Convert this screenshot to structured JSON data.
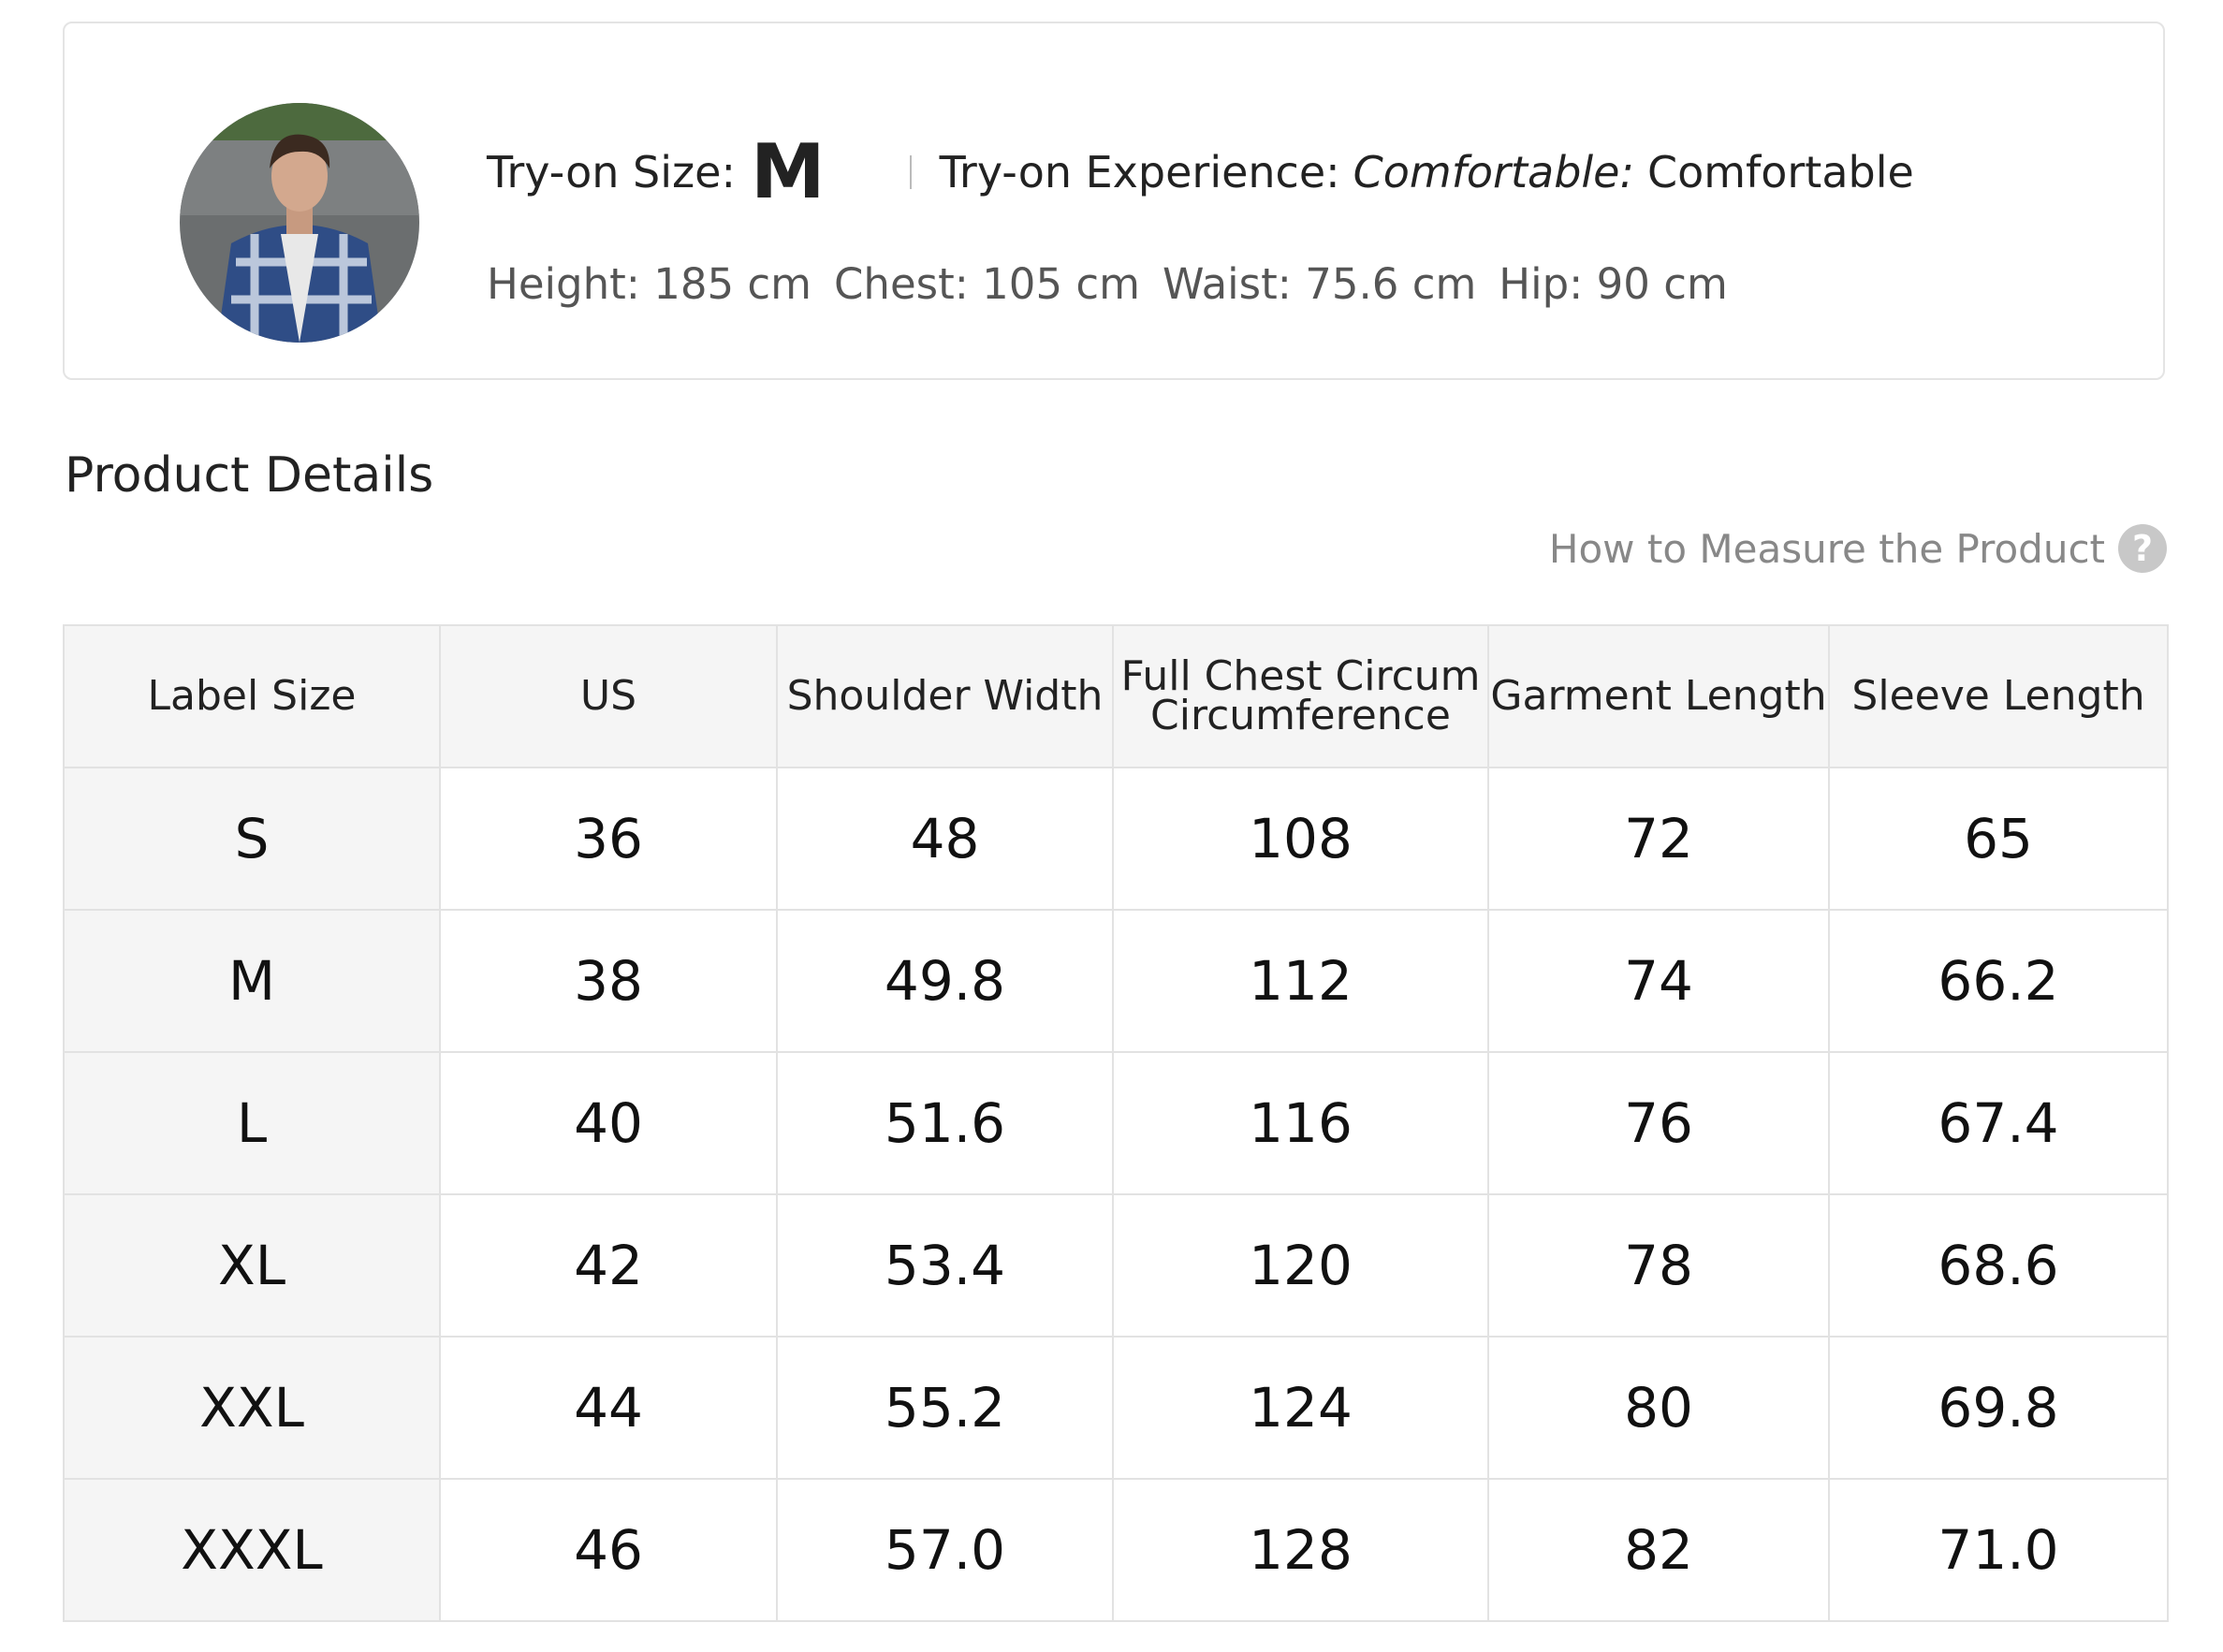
{
  "tryon": {
    "size_label": "Try-on Size:",
    "size": "M",
    "experience_label": "Try-on Experience:",
    "experience_italic": "Comfortable:",
    "experience": "Comfortable",
    "measurements": [
      "Height: 185 cm",
      "Chest: 105 cm",
      "Waist: 75.6 cm",
      "Hip: 90 cm"
    ]
  },
  "section_title": "Product Details",
  "measure_link": "How to Measure the Product",
  "help_icon": "?",
  "table": {
    "headers": [
      [
        "Label Size"
      ],
      [
        "US"
      ],
      [
        "Shoulder Width"
      ],
      [
        "Full Chest Circum",
        "Circumference"
      ],
      [
        "Garment Length"
      ],
      [
        "Sleeve Length"
      ]
    ],
    "rows": [
      [
        "S",
        "36",
        "48",
        "108",
        "72",
        "65"
      ],
      [
        "M",
        "38",
        "49.8",
        "112",
        "74",
        "66.2"
      ],
      [
        "L",
        "40",
        "51.6",
        "116",
        "76",
        "67.4"
      ],
      [
        "XL",
        "42",
        "53.4",
        "120",
        "78",
        "68.6"
      ],
      [
        "XXL",
        "44",
        "55.2",
        "124",
        "80",
        "69.8"
      ],
      [
        "XXXL",
        "46",
        "57.0",
        "128",
        "82",
        "71.0"
      ]
    ]
  }
}
